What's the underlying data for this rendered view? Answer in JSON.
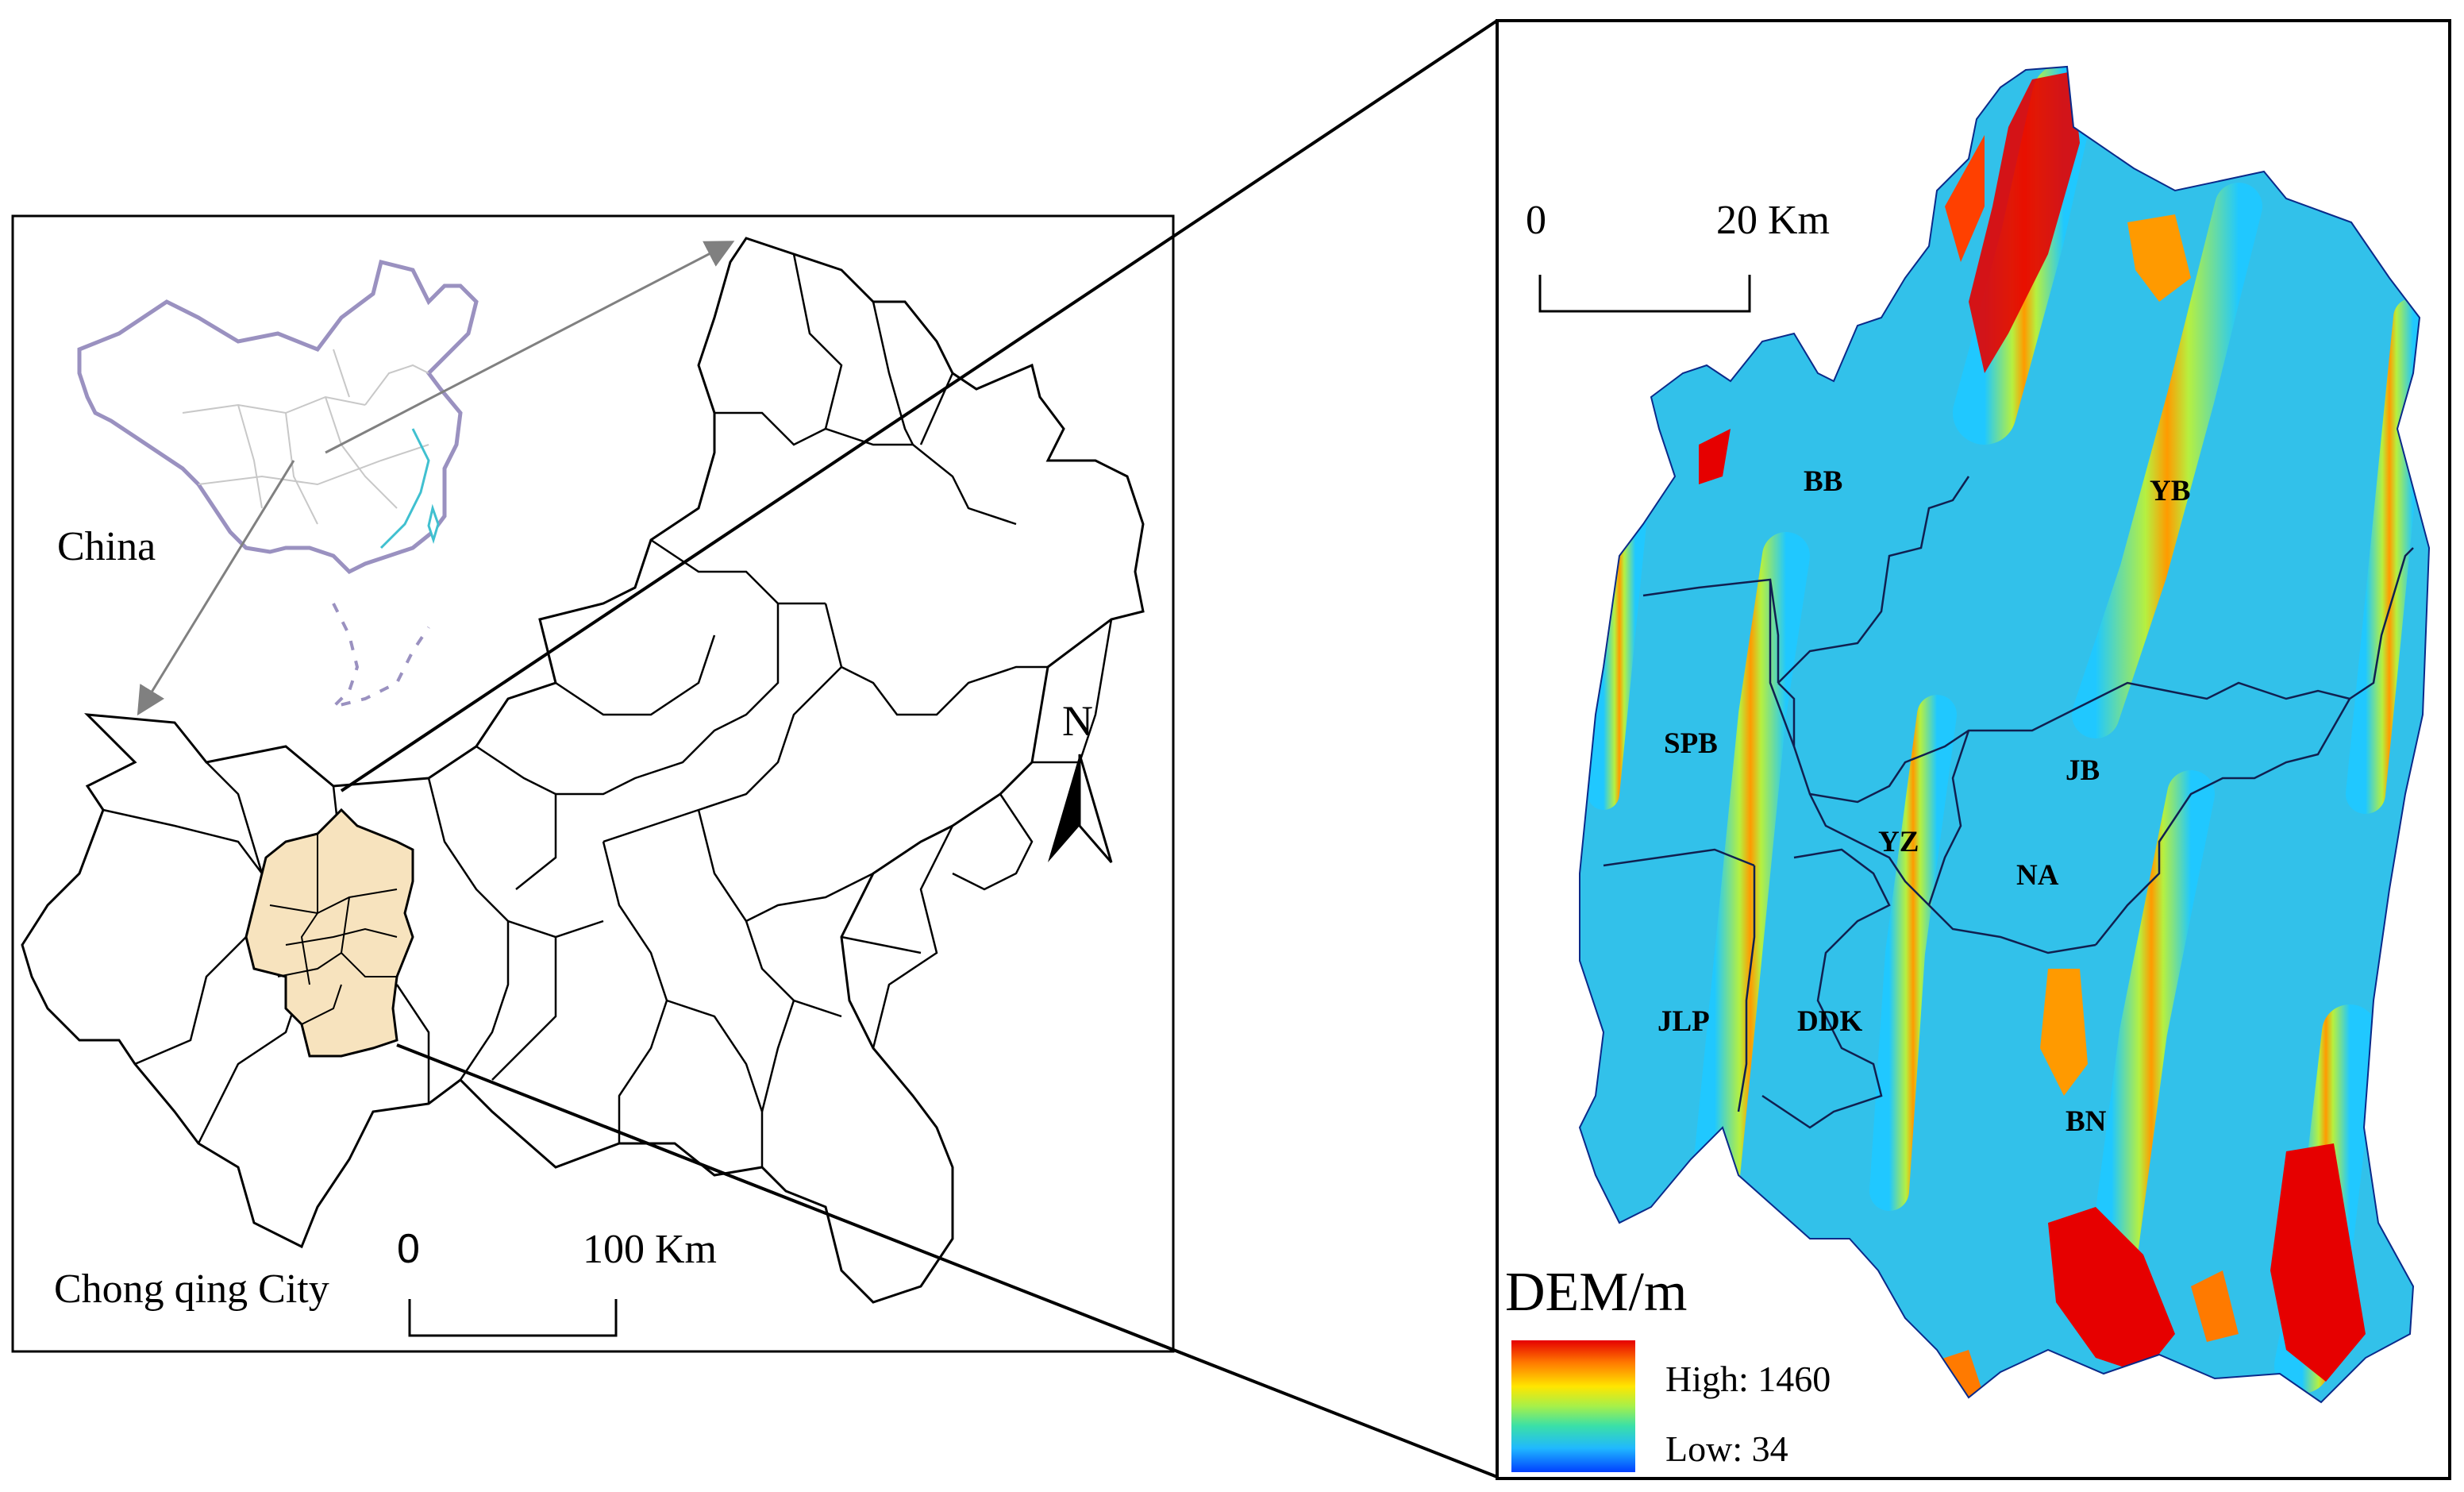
{
  "overview_map": {
    "china_label": "China",
    "city_label": "Chong qing City",
    "north_label": "N",
    "scale_zero": "0",
    "scale_distance": "100 Km",
    "highlight_color": "#f7e3be"
  },
  "detail_map": {
    "scale_zero": "0",
    "scale_distance": "20 Km",
    "districts": [
      "BB",
      "YB",
      "SPB",
      "JB",
      "YZ",
      "NA",
      "JLP",
      "DDK",
      "BN"
    ],
    "legend": {
      "title": "DEM/m",
      "high_label": "High: 1460",
      "low_label": "Low: 34",
      "colors": [
        "#e60000",
        "#ff7a00",
        "#ffe600",
        "#a6f04a",
        "#3ae0a8",
        "#20b8ff",
        "#0040ff"
      ]
    }
  }
}
